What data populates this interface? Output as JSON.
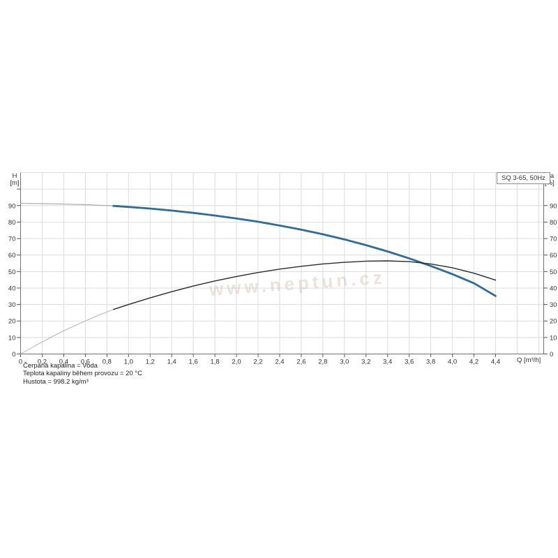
{
  "title_box": "SQ 3-65, 50Hz",
  "watermark": "www.neptun.cz",
  "axes": {
    "left_title": [
      "H",
      "[m]"
    ],
    "right_title": [
      "eta",
      "[%]"
    ],
    "x_unit": "Q [m³/h]",
    "left_tick_labels": [
      "0",
      "10",
      "20",
      "30",
      "40",
      "50",
      "60",
      "70",
      "80",
      "90"
    ],
    "right_tick_labels": [
      "0",
      "10",
      "20",
      "30",
      "40",
      "50",
      "60",
      "70",
      "80",
      "90"
    ],
    "x_tick_labels": [
      "0",
      "0,2",
      "0,4",
      "0,6",
      "0,8",
      "1,0",
      "1,2",
      "1,4",
      "1,6",
      "1,8",
      "2,0",
      "2,2",
      "2,4",
      "2,6",
      "2,8",
      "3,0",
      "3,2",
      "3,4",
      "3,6",
      "3,8",
      "4,0",
      "4,2",
      "4,4"
    ]
  },
  "chart_data": {
    "type": "line",
    "title": "SQ 3-65, 50Hz",
    "xlabel": "Q [m³/h]",
    "ylabel_left": "H [m]",
    "ylabel_right": "eta [%]",
    "xlim": [
      0,
      4.85
    ],
    "ylim": [
      0,
      110
    ],
    "x_grid_step": 0.2,
    "y_grid_step": 10,
    "grid": true,
    "legend": "none",
    "series": [
      {
        "name": "head-curve-leadin",
        "axis": "left",
        "color": "#9fa8ae",
        "width": 1.1,
        "points": [
          [
            0,
            91.4
          ],
          [
            0.3,
            91.1
          ],
          [
            0.6,
            90.6
          ],
          [
            0.86,
            89.8
          ]
        ]
      },
      {
        "name": "head-curve",
        "axis": "left",
        "color": "#2e6d99",
        "width": 2.8,
        "points": [
          [
            0.86,
            89.8
          ],
          [
            1.0,
            89.2
          ],
          [
            1.2,
            88.2
          ],
          [
            1.4,
            87.0
          ],
          [
            1.6,
            85.6
          ],
          [
            1.8,
            84.0
          ],
          [
            2.0,
            82.2
          ],
          [
            2.2,
            80.2
          ],
          [
            2.4,
            77.9
          ],
          [
            2.6,
            75.4
          ],
          [
            2.8,
            72.6
          ],
          [
            3.0,
            69.5
          ],
          [
            3.2,
            66.0
          ],
          [
            3.4,
            62.2
          ],
          [
            3.6,
            58.0
          ],
          [
            3.8,
            53.4
          ],
          [
            4.0,
            48.4
          ],
          [
            4.2,
            42.9
          ],
          [
            4.4,
            35.2
          ]
        ]
      },
      {
        "name": "efficiency-curve-leadin",
        "axis": "right",
        "color": "#b3b3b3",
        "width": 1,
        "points": [
          [
            0,
            0
          ],
          [
            0.15,
            5.5
          ],
          [
            0.3,
            10.8
          ],
          [
            0.45,
            15.6
          ],
          [
            0.6,
            20.0
          ],
          [
            0.73,
            23.7
          ],
          [
            0.86,
            27.0
          ]
        ]
      },
      {
        "name": "efficiency-curve",
        "axis": "right",
        "color": "#2b2b2b",
        "width": 1.4,
        "points": [
          [
            0.86,
            27.0
          ],
          [
            1.0,
            30.0
          ],
          [
            1.2,
            34.0
          ],
          [
            1.4,
            37.8
          ],
          [
            1.6,
            41.2
          ],
          [
            1.8,
            44.3
          ],
          [
            2.0,
            47.0
          ],
          [
            2.2,
            49.4
          ],
          [
            2.4,
            51.5
          ],
          [
            2.6,
            53.2
          ],
          [
            2.8,
            54.6
          ],
          [
            3.0,
            55.6
          ],
          [
            3.2,
            56.3
          ],
          [
            3.4,
            56.5
          ],
          [
            3.6,
            56.0
          ],
          [
            3.8,
            54.6
          ],
          [
            4.0,
            52.3
          ],
          [
            4.2,
            49.0
          ],
          [
            4.4,
            44.8
          ]
        ]
      }
    ]
  },
  "footer_lines": [
    "Čerpaná kapalina = Voda",
    "Teplota kapaliny během provozu = 20 °C",
    "Hustota = 998.2 kg/m³"
  ],
  "colors": {
    "grid": "#dcdcdc",
    "axis": "#707070",
    "tick": "#555555",
    "tick_text": "#333333",
    "head_curve": "#2e6d99",
    "eta_curve": "#2b2b2b"
  }
}
